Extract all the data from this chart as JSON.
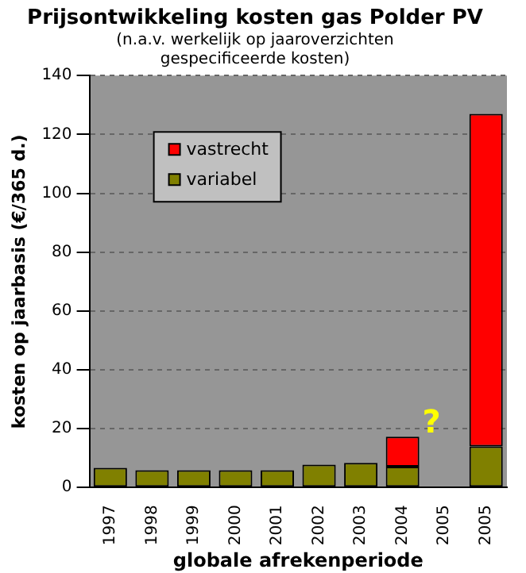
{
  "chart_data": {
    "type": "bar",
    "title": "Prijsontwikkeling kosten gas Polder PV",
    "subtitle": "(n.a.v. werkelijk op jaaroverzichten\ngespecificeerde kosten)",
    "xlabel": "globale afrekenperiode",
    "ylabel": "kosten op jaarbasis (€/365 d.)",
    "categories": [
      "1997",
      "1998",
      "1999",
      "2000",
      "2001",
      "2002",
      "2003",
      "2004",
      "2005",
      "2005"
    ],
    "series": [
      {
        "name": "variabel",
        "color": "#808000",
        "values": [
          6.7,
          5.9,
          5.9,
          5.9,
          5.9,
          7.8,
          8.4,
          7.1,
          null,
          14
        ]
      },
      {
        "name": "vastrecht",
        "color": "#ff0000",
        "values": [
          null,
          null,
          null,
          null,
          null,
          null,
          null,
          10.2,
          null,
          113
        ]
      }
    ],
    "stacked": true,
    "ylim": [
      0,
      140
    ],
    "yticks": [
      0,
      20,
      40,
      60,
      80,
      100,
      120,
      140
    ],
    "grid": "y",
    "legend": "top left",
    "annotations": [
      "?"
    ]
  }
}
